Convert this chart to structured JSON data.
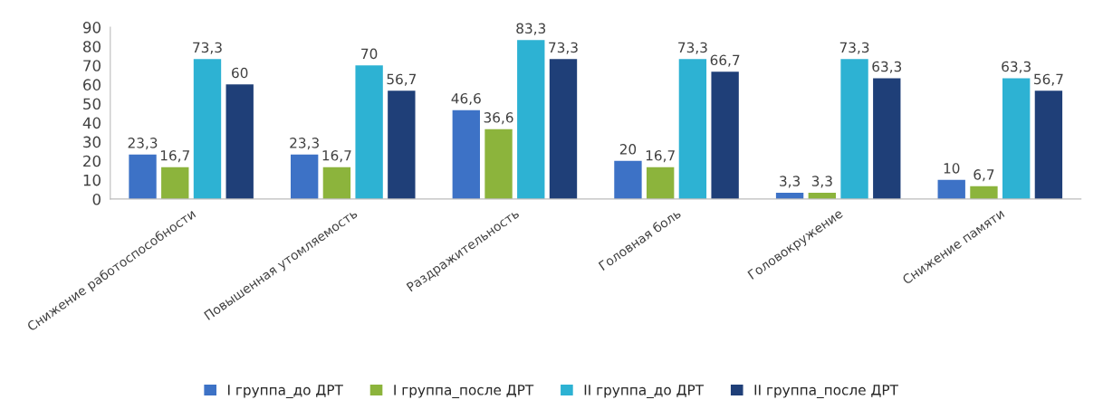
{
  "chart_data": {
    "type": "bar",
    "categories": [
      "Снижение работоспособности",
      "Повышенная утомляемость",
      "Раздражительность",
      "Головная боль",
      "Головокружение",
      "Снижение памяти"
    ],
    "series": [
      {
        "name": "I группа_до ДРТ",
        "color": "#3d72c6",
        "values": [
          23.3,
          23.3,
          46.6,
          20,
          3.3,
          10
        ],
        "value_labels": [
          "23,3",
          "23,3",
          "46,6",
          "20",
          "3,3",
          "10"
        ]
      },
      {
        "name": "I группа_после ДРТ",
        "color": "#8cb43c",
        "values": [
          16.7,
          16.7,
          36.6,
          16.7,
          3.3,
          6.7
        ],
        "value_labels": [
          "16,7",
          "16,7",
          "36,6",
          "16,7",
          "3,3",
          "6,7"
        ]
      },
      {
        "name": "II группа_до ДРТ",
        "color": "#2db2d3",
        "values": [
          73.3,
          70,
          83.3,
          73.3,
          73.3,
          63.3
        ],
        "value_labels": [
          "73,3",
          "70",
          "83,3",
          "73,3",
          "73,3",
          "63,3"
        ]
      },
      {
        "name": "II группа_после ДРТ",
        "color": "#1f3f78",
        "values": [
          60,
          56.7,
          73.3,
          66.7,
          63.3,
          56.7
        ],
        "value_labels": [
          "60",
          "56,7",
          "73,3",
          "66,7",
          "63,3",
          "56,7"
        ]
      }
    ],
    "ylim": [
      0,
      90
    ],
    "yticks": [
      0,
      10,
      20,
      30,
      40,
      50,
      60,
      70,
      80,
      90
    ],
    "grid": false,
    "legend": "bottom"
  }
}
